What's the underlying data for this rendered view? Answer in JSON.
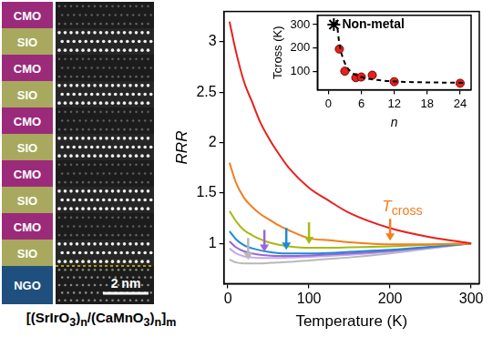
{
  "stem_panel": {
    "layers": [
      "CMO",
      "SIO",
      "CMO",
      "SIO",
      "CMO",
      "SIO",
      "CMO",
      "SIO",
      "CMO",
      "SIO",
      "NGO"
    ],
    "layer_colors": {
      "CMO": "#9b2b7a",
      "SIO": "#a8a95e",
      "NGO": "#1e4f7e"
    },
    "scale_bar": "2 nm",
    "caption": "[(SrIrO3)n/(CaMnO3)n]m"
  },
  "chart_data": [
    {
      "type": "line",
      "x_label": "Temperature (K)",
      "y_label": "RRR",
      "xlim": [
        -5,
        310
      ],
      "xticks": [
        0,
        100,
        200,
        300
      ],
      "ylim": [
        0.6,
        3.3
      ],
      "yticks": [
        1,
        1.5,
        2,
        2.5,
        3
      ],
      "grid": false,
      "x": [
        2,
        10,
        20,
        30,
        40,
        50,
        60,
        75,
        100,
        125,
        150,
        200,
        250,
        300
      ],
      "series": [
        {
          "color": "#e8201e",
          "values": [
            3.2,
            2.9,
            2.6,
            2.4,
            2.2,
            2.05,
            1.92,
            1.75,
            1.55,
            1.42,
            1.3,
            1.15,
            1.06,
            1.0
          ]
        },
        {
          "color": "#f47d20",
          "values": [
            1.8,
            1.6,
            1.45,
            1.36,
            1.29,
            1.24,
            1.19,
            1.13,
            1.05,
            1.03,
            1.01,
            0.99,
            0.99,
            1.0
          ]
        },
        {
          "color": "#a9b810",
          "values": [
            1.32,
            1.22,
            1.13,
            1.08,
            1.04,
            1.01,
            0.99,
            0.97,
            0.955,
            0.955,
            0.96,
            0.97,
            0.985,
            1.0
          ]
        },
        {
          "color": "#1f8ad6",
          "values": [
            1.12,
            1.04,
            0.98,
            0.95,
            0.93,
            0.915,
            0.905,
            0.9,
            0.9,
            0.905,
            0.915,
            0.935,
            0.965,
            1.0
          ]
        },
        {
          "color": "#9a66d6",
          "values": [
            1.02,
            0.96,
            0.92,
            0.9,
            0.885,
            0.88,
            0.875,
            0.875,
            0.88,
            0.89,
            0.9,
            0.925,
            0.96,
            1.0
          ]
        },
        {
          "color": "#c4a8ea",
          "values": [
            0.95,
            0.9,
            0.87,
            0.86,
            0.855,
            0.855,
            0.855,
            0.86,
            0.865,
            0.875,
            0.885,
            0.915,
            0.955,
            1.0
          ]
        },
        {
          "color": "#b8b8b8",
          "values": [
            0.84,
            0.81,
            0.8,
            0.8,
            0.8,
            0.805,
            0.81,
            0.815,
            0.83,
            0.845,
            0.86,
            0.9,
            0.95,
            1.0
          ]
        }
      ],
      "arrows": [
        {
          "x": 200,
          "y": 0.99,
          "color": "#f47d20"
        },
        {
          "x": 100,
          "y": 0.955,
          "color": "#a9b810"
        },
        {
          "x": 72,
          "y": 0.9,
          "color": "#1f8ad6"
        },
        {
          "x": 45,
          "y": 0.88,
          "color": "#9a66d6"
        },
        {
          "x": 25,
          "y": 0.8,
          "color": "#b8b8b8"
        }
      ],
      "annotations": [
        {
          "text": "Tcross",
          "x": 215,
          "y": 1.35,
          "color": "#f47d20"
        }
      ]
    },
    {
      "type": "scatter",
      "x_label": "n",
      "y_label": "Tcross (K)",
      "xlim": [
        -2,
        26
      ],
      "xticks": [
        0,
        6,
        12,
        18,
        24
      ],
      "ylim": [
        20,
        340
      ],
      "yticks": [
        100,
        200,
        300
      ],
      "grid": false,
      "series": [
        {
          "type": "line",
          "color": "#000000",
          "line_style": "dashed",
          "x": [
            1.5,
            2,
            3,
            4,
            6,
            9,
            12,
            18,
            25
          ],
          "values": [
            320,
            220,
            135,
            100,
            75,
            62,
            56,
            52,
            50
          ]
        },
        {
          "type": "scatter",
          "color": "#e0231c",
          "marker": "circle",
          "x": [
            2,
            3,
            5,
            6,
            8,
            12,
            24
          ],
          "values": [
            195,
            100,
            72,
            75,
            83,
            55,
            48
          ]
        },
        {
          "type": "scatter",
          "color": "#000000",
          "marker": "star",
          "x": [
            1
          ],
          "values": [
            300
          ]
        }
      ],
      "annotations": [
        {
          "text": "Non-metal",
          "x": 2.5,
          "y": 300,
          "color": "#000000"
        }
      ]
    }
  ]
}
